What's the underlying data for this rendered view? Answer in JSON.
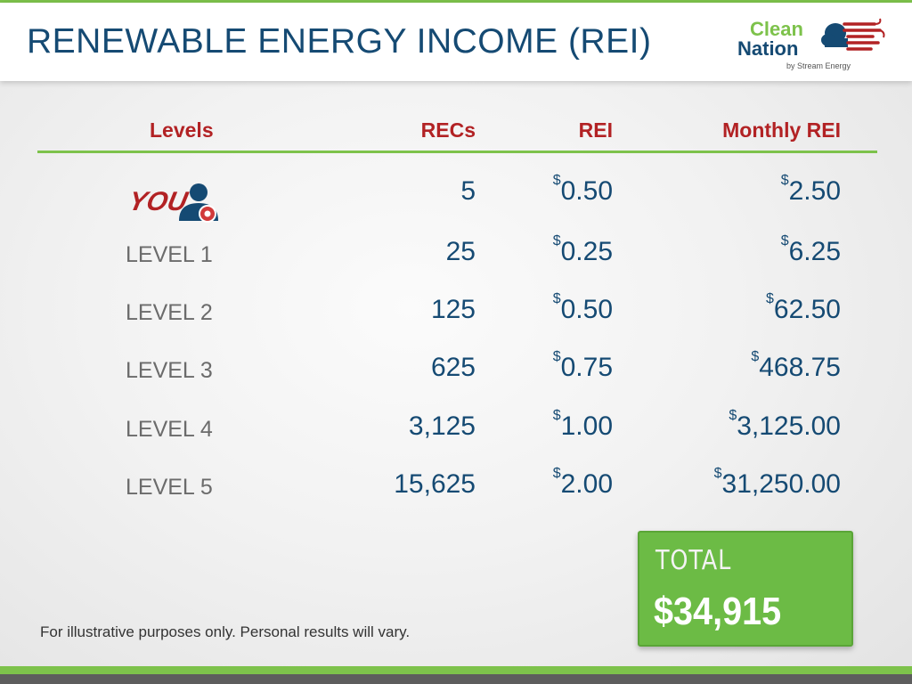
{
  "title": "RENEWABLE ENERGY INCOME (REI)",
  "logo": {
    "line1": "Clean",
    "line2": "Nation",
    "byline": "by Stream Energy",
    "colors": {
      "green": "#7dc24b",
      "navy": "#154a73",
      "red": "#b22224"
    }
  },
  "table": {
    "headers": [
      "Levels",
      "RECs",
      "REI",
      "Monthly REI"
    ],
    "currency_symbol": "$",
    "rows": [
      {
        "level": "YOU",
        "recs": "5",
        "rei": "0.50",
        "monthly": "2.50"
      },
      {
        "level": "LEVEL 1",
        "recs": "25",
        "rei": "0.25",
        "monthly": "6.25"
      },
      {
        "level": "LEVEL 2",
        "recs": "125",
        "rei": "0.50",
        "monthly": "62.50"
      },
      {
        "level": "LEVEL 3",
        "recs": "625",
        "rei": "0.75",
        "monthly": "468.75"
      },
      {
        "level": "LEVEL 4",
        "recs": "3,125",
        "rei": "1.00",
        "monthly": "3,125.00"
      },
      {
        "level": "LEVEL 5",
        "recs": "15,625",
        "rei": "2.00",
        "monthly": "31,250.00"
      }
    ]
  },
  "total": {
    "label": "TOTAL",
    "value": "$34,915"
  },
  "footnote": "For illustrative purposes only. Personal results will vary.",
  "colors": {
    "header_text": "#b22224",
    "value_text": "#154a73",
    "level_text": "#6b6b6b",
    "accent_green": "#7dc24b",
    "total_box": "#6cbb45",
    "footer_gray": "#5d5d5d"
  },
  "icons": {
    "you_badge": "you-person-gear-icon",
    "logo_art": "cloud-flag-icon"
  }
}
